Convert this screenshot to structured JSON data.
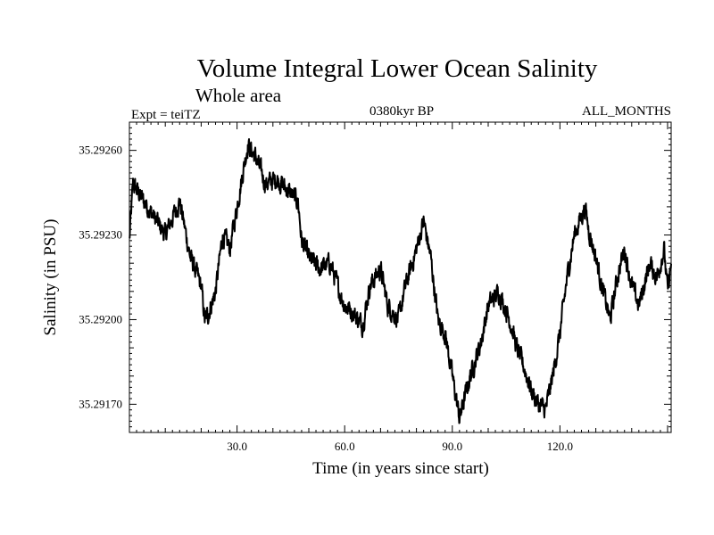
{
  "chart_data": {
    "type": "line",
    "title": "Volume Integral Lower Ocean Salinity",
    "subtitle": "Whole area",
    "experiment": "Expt = teiTZ",
    "period": "0380kyr BP",
    "months": "ALL_MONTHS",
    "xlabel": "Time (in years since start)",
    "ylabel": "Salinity (in PSU)",
    "xlim": [
      0,
      151
    ],
    "ylim": [
      35.2916,
      35.2927
    ],
    "x_ticks": [
      30,
      60,
      90,
      120
    ],
    "x_tick_labels": [
      "30.0",
      "60.0",
      "90.0",
      "120.0"
    ],
    "y_ticks": [
      35.2917,
      35.292,
      35.2923,
      35.2926
    ],
    "y_tick_labels": [
      "35.29170",
      "35.29200",
      "35.29230",
      "35.29260"
    ],
    "series": [
      {
        "name": "Salinity",
        "color": "#000000",
        "anchors_x": [
          0,
          1,
          5,
          10,
          14,
          17,
          20,
          21,
          22,
          24,
          26,
          28,
          30,
          32,
          33,
          35,
          38,
          41,
          44,
          47,
          48,
          50,
          53,
          56,
          58,
          60,
          62,
          65,
          67,
          70,
          72,
          75,
          77,
          80,
          82,
          84,
          86,
          88,
          90,
          92,
          93,
          95,
          98,
          100,
          103,
          106,
          108,
          110,
          112,
          114,
          116,
          118,
          120,
          122,
          124,
          127,
          128,
          130,
          132,
          134,
          136,
          138,
          140,
          142,
          145,
          147,
          149,
          150,
          151
        ],
        "anchors_y": [
          35.29228,
          35.29248,
          35.2924,
          35.2923,
          35.29242,
          35.29222,
          35.29212,
          35.292,
          35.29202,
          35.2921,
          35.2923,
          35.29225,
          35.2924,
          35.29255,
          35.29262,
          35.29258,
          35.29248,
          35.2925,
          35.29246,
          35.29242,
          35.29228,
          35.29222,
          35.29218,
          35.2922,
          35.29212,
          35.29205,
          35.29203,
          35.29198,
          35.29212,
          35.29218,
          35.29205,
          35.292,
          35.29212,
          35.29225,
          35.29235,
          35.29222,
          35.292,
          35.29195,
          35.2918,
          35.29165,
          35.2917,
          35.2918,
          35.29192,
          35.29205,
          35.2921,
          35.292,
          35.2919,
          35.29183,
          35.29175,
          35.2917,
          35.29168,
          35.2918,
          35.29195,
          35.29215,
          35.2923,
          35.2924,
          35.29232,
          35.29222,
          35.2921,
          35.292,
          35.29215,
          35.29225,
          35.29212,
          35.29205,
          35.2922,
          35.29215,
          35.29225,
          35.2921,
          35.2922
        ]
      }
    ]
  }
}
